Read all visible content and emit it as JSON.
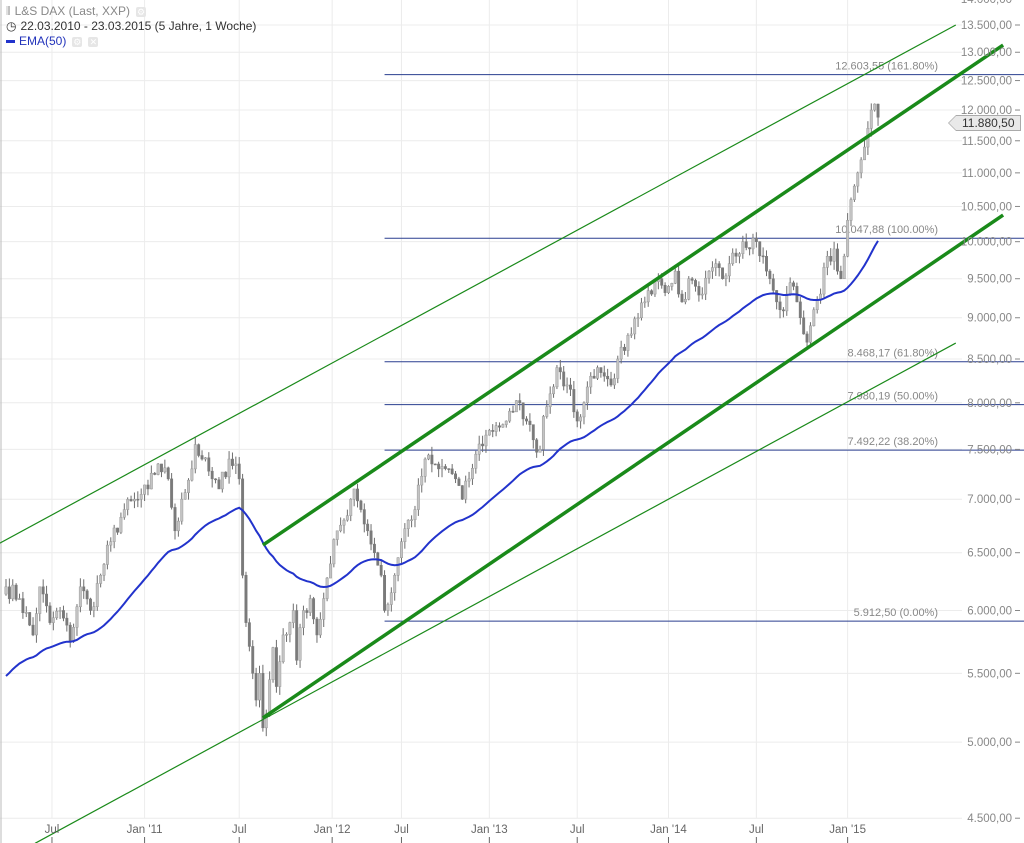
{
  "legend": {
    "instrument": "L&S DAX (Last, XXP)",
    "period": "22.03.2010 - 23.03.2015 (5 Jahre, 1 Woche)",
    "indicator": "EMA(50)"
  },
  "last_price_tag": "11.880,50",
  "colors": {
    "up_candle": "#c4c4c4",
    "down_candle": "#7a7a7a",
    "wick": "#6e6e6e",
    "ema": "#2233cc",
    "channel": "#1a8a1a",
    "fib": "#2a3f8f",
    "grid": "#ececec"
  },
  "chart_data": {
    "type": "candlestick",
    "title": "L&S DAX (Last, XXP)",
    "interval": "weekly",
    "y_scale": "log",
    "ylim": [
      4400,
      14000
    ],
    "y_ticks": [
      "4.500,00",
      "5.000,00",
      "5.500,00",
      "6.000,00",
      "6.500,00",
      "7.000,00",
      "7.500,00",
      "8.000,00",
      "8.500,00",
      "9.000,00",
      "9.500,00",
      "10.000,00",
      "10.500,00",
      "11.000,00",
      "11.500,00",
      "12.000,00",
      "12.500,00",
      "13.000,00",
      "13.500,00",
      "14.000,00"
    ],
    "y_tick_values": [
      4500,
      5000,
      5500,
      6000,
      6500,
      7000,
      7500,
      8000,
      8500,
      9000,
      9500,
      10000,
      10500,
      11000,
      11500,
      12000,
      12500,
      13000,
      13500,
      14000
    ],
    "x_ticks": [
      {
        "label": "Jul",
        "week": 13.6
      },
      {
        "label": "Jan '11",
        "week": 41
      },
      {
        "label": "Jul",
        "week": 69
      },
      {
        "label": "Jan '12",
        "week": 96.5
      },
      {
        "label": "Jul",
        "week": 117
      },
      {
        "label": "Jan '13",
        "week": 143
      },
      {
        "label": "Jul",
        "week": 169
      },
      {
        "label": "Jan '14",
        "week": 196
      },
      {
        "label": "Jul",
        "week": 222
      },
      {
        "label": "Jan '15",
        "week": 249
      }
    ],
    "grid": true,
    "close_path_week_value": [
      [
        0,
        6200
      ],
      [
        4,
        6100
      ],
      [
        8,
        5800
      ],
      [
        10,
        6200
      ],
      [
        13,
        5900
      ],
      [
        16,
        6000
      ],
      [
        19,
        5750
      ],
      [
        22,
        6200
      ],
      [
        25,
        6000
      ],
      [
        28,
        6300
      ],
      [
        31,
        6600
      ],
      [
        35,
        6900
      ],
      [
        39,
        7000
      ],
      [
        42,
        7100
      ],
      [
        45,
        7350
      ],
      [
        48,
        7200
      ],
      [
        50,
        6700
      ],
      [
        52,
        7000
      ],
      [
        55,
        7300
      ],
      [
        56,
        7550
      ],
      [
        58,
        7400
      ],
      [
        61,
        7200
      ],
      [
        63,
        7100
      ],
      [
        66,
        7400
      ],
      [
        68,
        7350
      ],
      [
        69,
        7200
      ],
      [
        70,
        6300
      ],
      [
        71,
        5900
      ],
      [
        73,
        5500
      ],
      [
        74,
        5300
      ],
      [
        75,
        5500
      ],
      [
        76,
        5100
      ],
      [
        77,
        5200
      ],
      [
        79,
        5700
      ],
      [
        80,
        5400
      ],
      [
        82,
        5800
      ],
      [
        84,
        5900
      ],
      [
        85,
        6000
      ],
      [
        86,
        5600
      ],
      [
        88,
        6000
      ],
      [
        90,
        6100
      ],
      [
        92,
        5800
      ],
      [
        94,
        6100
      ],
      [
        96,
        6400
      ],
      [
        98,
        6700
      ],
      [
        100,
        6800
      ],
      [
        102,
        7000
      ],
      [
        103,
        7100
      ],
      [
        105,
        6900
      ],
      [
        107,
        6700
      ],
      [
        109,
        6500
      ],
      [
        111,
        6300
      ],
      [
        112,
        6000
      ],
      [
        113,
        6050
      ],
      [
        115,
        6300
      ],
      [
        117,
        6600
      ],
      [
        119,
        6800
      ],
      [
        121,
        6900
      ],
      [
        124,
        7400
      ],
      [
        126,
        7350
      ],
      [
        128,
        7300
      ],
      [
        131,
        7300
      ],
      [
        133,
        7200
      ],
      [
        135,
        7000
      ],
      [
        137,
        7200
      ],
      [
        139,
        7450
      ],
      [
        142,
        7650
      ],
      [
        145,
        7750
      ],
      [
        148,
        7800
      ],
      [
        150,
        7900
      ],
      [
        152,
        8000
      ],
      [
        154,
        7800
      ],
      [
        156,
        7600
      ],
      [
        158,
        7500
      ],
      [
        159,
        7850
      ],
      [
        161,
        8100
      ],
      [
        163,
        8400
      ],
      [
        164,
        8350
      ],
      [
        166,
        8200
      ],
      [
        168,
        7900
      ],
      [
        169,
        7800
      ],
      [
        171,
        8000
      ],
      [
        173,
        8300
      ],
      [
        175,
        8400
      ],
      [
        177,
        8300
      ],
      [
        179,
        8200
      ],
      [
        181,
        8500
      ],
      [
        183,
        8600
      ],
      [
        185,
        8800
      ],
      [
        187,
        9000
      ],
      [
        189,
        9200
      ],
      [
        191,
        9300
      ],
      [
        193,
        9500
      ],
      [
        196,
        9400
      ],
      [
        198,
        9600
      ],
      [
        200,
        9200
      ],
      [
        202,
        9500
      ],
      [
        204,
        9400
      ],
      [
        206,
        9300
      ],
      [
        208,
        9600
      ],
      [
        210,
        9700
      ],
      [
        212,
        9500
      ],
      [
        214,
        9700
      ],
      [
        216,
        9800
      ],
      [
        218,
        10000
      ],
      [
        220,
        9900
      ],
      [
        222,
        10000
      ],
      [
        224,
        9800
      ],
      [
        225,
        9600
      ],
      [
        226,
        9500
      ],
      [
        228,
        9200
      ],
      [
        229,
        9100
      ],
      [
        231,
        9300
      ],
      [
        233,
        9400
      ],
      [
        234,
        9200
      ],
      [
        235,
        9000
      ],
      [
        236,
        8800
      ],
      [
        237,
        8700
      ],
      [
        238,
        8900
      ],
      [
        239,
        9100
      ],
      [
        241,
        9300
      ],
      [
        243,
        9800
      ],
      [
        245,
        9900
      ],
      [
        246,
        9600
      ],
      [
        247,
        9500
      ],
      [
        248,
        9800
      ],
      [
        249,
        10300
      ],
      [
        250,
        10600
      ],
      [
        251,
        10800
      ],
      [
        252,
        11000
      ],
      [
        253,
        11200
      ],
      [
        254,
        11400
      ],
      [
        255,
        11700
      ],
      [
        256,
        12000
      ],
      [
        257,
        12100
      ],
      [
        258,
        11880.5
      ]
    ],
    "ema": {
      "name": "EMA(50)",
      "period": 50,
      "start_value": 5450
    },
    "trendlines": [
      {
        "name": "channel-upper",
        "weight": "thick",
        "from": [
          76,
          6569
        ],
        "to": [
          295,
          13130
        ]
      },
      {
        "name": "channel-lower",
        "weight": "thick",
        "from": [
          76,
          5170
        ],
        "to": [
          295,
          10375
        ]
      },
      {
        "name": "outer-upper",
        "weight": "thin",
        "from": [
          -1.8,
          6587
        ],
        "to": [
          281,
          13500
        ]
      },
      {
        "name": "outer-lower",
        "weight": "thin",
        "from": [
          8.6,
          4346
        ],
        "to": [
          281,
          8690
        ]
      }
    ],
    "fibonacci": {
      "start_week": 112,
      "levels": [
        {
          "value": 12603.55,
          "label": "12.603,55 (161.80%)"
        },
        {
          "value": 10047.88,
          "label": "10.047,88 (100.00%)"
        },
        {
          "value": 8468.17,
          "label": "8.468,17 (61.80%)"
        },
        {
          "value": 7980.19,
          "label": "7.980,19 (50.00%)"
        },
        {
          "value": 7492.22,
          "label": "7.492,22 (38.20%)"
        },
        {
          "value": 5912.5,
          "label": "5.912,50 (0.00%)"
        }
      ]
    },
    "last_value": 11880.5
  }
}
